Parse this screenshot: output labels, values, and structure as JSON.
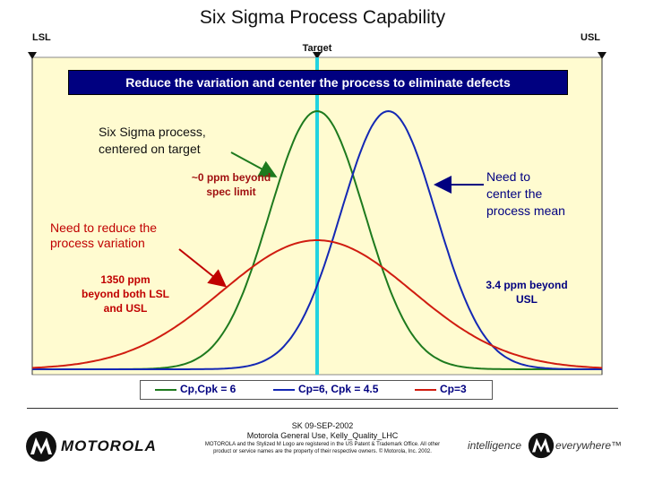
{
  "page": {
    "title": "Six Sigma Process Capability",
    "banner": "Reduce the variation and center the process to eliminate defects"
  },
  "chart_data": {
    "type": "line",
    "title": "Six Sigma Process Capability",
    "lsl_label": "LSL",
    "usl_label": "USL",
    "target_label": "Target",
    "x_range": [
      -6,
      6
    ],
    "lsl": -6,
    "usl": 6,
    "target": 0,
    "series": [
      {
        "name": "Cp,Cpk = 6",
        "mean": 0,
        "sigma": 1,
        "color": "#1e7a1e"
      },
      {
        "name": "Cp=6, Cpk = 4.5",
        "mean": 1.5,
        "sigma": 1,
        "color": "#1428b4"
      },
      {
        "name": "Cp=3",
        "mean": 0,
        "sigma": 2,
        "color": "#d01c10"
      }
    ],
    "background": "#fffbd0"
  },
  "annotations": {
    "centered": "Six Sigma process, centered on target",
    "zero_ppm": "~0 ppm beyond spec limit",
    "reduce_variation": "Need to reduce the process variation",
    "ppm_1350": "1350 ppm beyond both LSL and USL",
    "center_mean": "Need to center the process mean",
    "ppm_3_4": "3.4 ppm beyond USL"
  },
  "colors": {
    "banner_bg": "#000080",
    "annot_red": "#c00000",
    "annot_navy": "#000080"
  },
  "footer": {
    "brand": "MOTOROLA",
    "code": "SK 09-SEP-2002",
    "classification": "Motorola General Use, Kelly_Quality_LHC",
    "legal": "MOTOROLA and the Stylized M Logo are registered in the US Patent & Trademark Office. All other product or service names are the property of their respective owners. © Motorola, Inc. 2002.",
    "tagline_left": "intelligence",
    "tagline_right": "everywhere™"
  }
}
